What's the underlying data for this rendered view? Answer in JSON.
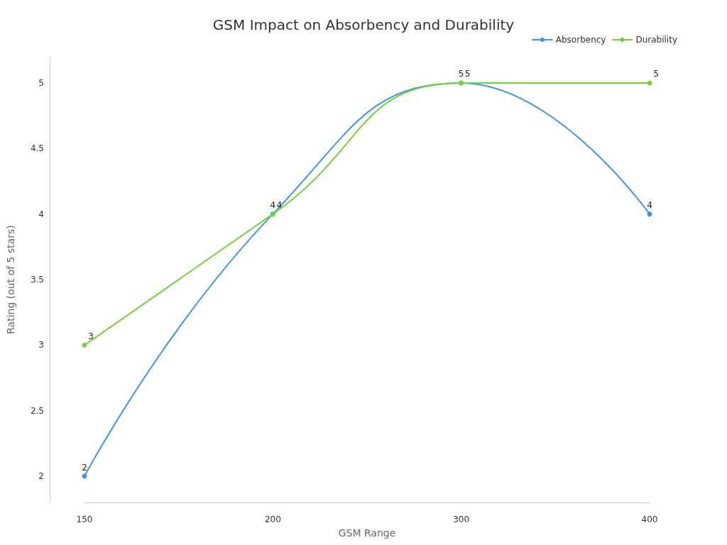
{
  "chart_data": {
    "type": "line",
    "title": "GSM Impact on Absorbency and Durability",
    "xlabel": "GSM Range",
    "ylabel": "Rating (out of 5 stars)",
    "categories": [
      "150",
      "200",
      "300",
      "400"
    ],
    "series": [
      {
        "name": "Absorbency",
        "color": "#3b97e3",
        "values": [
          2,
          4,
          5,
          4
        ]
      },
      {
        "name": "Durability",
        "color": "#6fd43a",
        "values": [
          3,
          4,
          5,
          5
        ]
      }
    ],
    "ylim": [
      1.8,
      5.2
    ],
    "yticks": [
      2,
      2.5,
      3,
      3.5,
      4,
      4.5,
      5
    ],
    "grid": false,
    "legend": "top right",
    "marker": "circle",
    "data_labels": true
  }
}
